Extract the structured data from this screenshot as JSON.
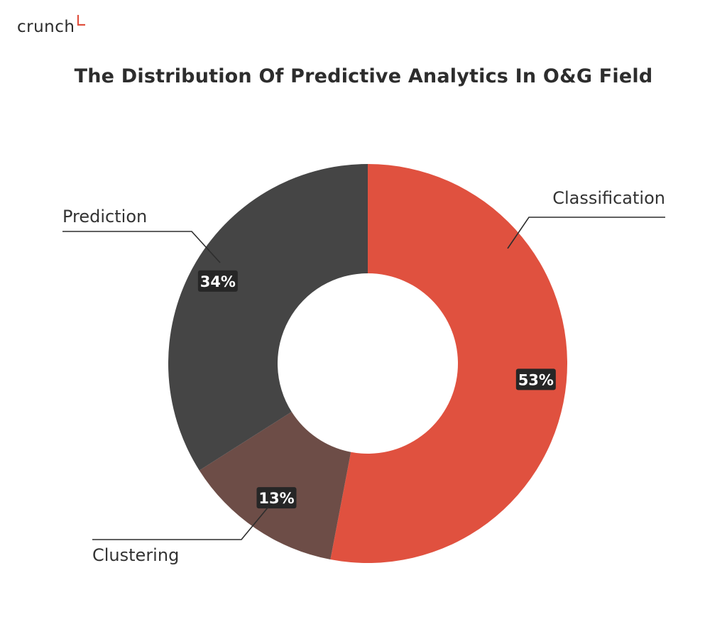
{
  "brand": {
    "name": "crunch",
    "accent": "#e0513f"
  },
  "chart_data": {
    "type": "pie",
    "donut": true,
    "title": "The Distribution Of Predictive Analytics In O&G Field",
    "slices": [
      {
        "label": "Classification",
        "value": 53,
        "display": "53%",
        "color": "#e0513f"
      },
      {
        "label": "Clustering",
        "value": 13,
        "display": "13%",
        "color": "#6d4d47"
      },
      {
        "label": "Prediction",
        "value": 34,
        "display": "34%",
        "color": "#454545"
      }
    ],
    "start_angle_deg": 0,
    "direction": "clockwise",
    "legend": "none",
    "labels": "callouts"
  }
}
